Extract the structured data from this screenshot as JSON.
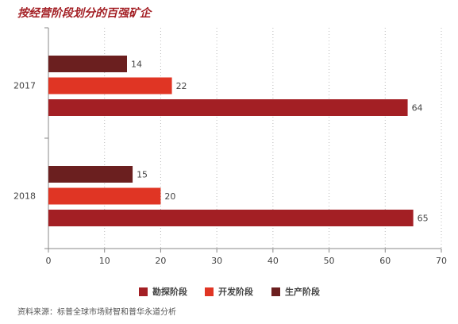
{
  "chart_data": {
    "type": "hbar",
    "title": "按经营阶段划分的百强矿企",
    "categories": [
      "2017",
      "2018"
    ],
    "series": [
      {
        "name": "勘探阶段",
        "color": "#a31f24",
        "values": [
          64,
          65
        ]
      },
      {
        "name": "开发阶段",
        "color": "#e03524",
        "values": [
          22,
          20
        ]
      },
      {
        "name": "生产阶段",
        "color": "#6b1f1f",
        "values": [
          14,
          15
        ]
      }
    ],
    "xlim": [
      0,
      70
    ],
    "xticks": [
      0,
      10,
      20,
      30,
      40,
      50,
      60,
      70
    ],
    "grid": true,
    "legend": "bottom",
    "source": "资料来源：标普全球市场财智和普华永道分析"
  }
}
